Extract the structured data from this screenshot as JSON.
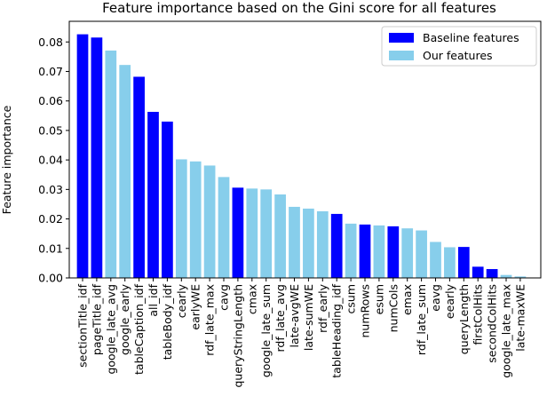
{
  "colors": {
    "baseline": "#0000ff",
    "ours": "#87ceeb",
    "axis": "#000000",
    "legend_border": "#cccccc"
  },
  "legend": {
    "position": "top-right",
    "entries": [
      {
        "label": "Baseline features",
        "group": "baseline"
      },
      {
        "label": "Our features",
        "group": "ours"
      }
    ]
  },
  "chart_data": {
    "type": "bar",
    "title": "Feature importance based on the Gini score for all features",
    "xlabel": "",
    "ylabel": "Feature importance",
    "ylim": [
      0,
      0.087
    ],
    "yticks": [
      "0.00",
      "0.01",
      "0.02",
      "0.03",
      "0.04",
      "0.05",
      "0.06",
      "0.07",
      "0.08"
    ],
    "ytick_values": [
      0.0,
      0.01,
      0.02,
      0.03,
      0.04,
      0.05,
      0.06,
      0.07,
      0.08
    ],
    "grid": false,
    "categories": [
      "sectionTitle_idf",
      "pageTitle_idf",
      "google_late_avg",
      "google_early",
      "tableCaption_idf",
      "all_idf",
      "tableBody_idf",
      "cearly",
      "earlyWE",
      "rdf_late_max",
      "cavg",
      "queryStringLength",
      "cmax",
      "google_late_sum",
      "rdf_late_avg",
      "late-avgWE",
      "late-sumWE",
      "rdf_early",
      "tableHeading_idf",
      "csum",
      "numRows",
      "esum",
      "numCols",
      "emax",
      "rdf_late_sum",
      "eavg",
      "eearly",
      "queryLength",
      "firstColHits",
      "secondColHits",
      "google_late_max",
      "late-maxWE"
    ],
    "values": [
      0.0826,
      0.0815,
      0.0771,
      0.0722,
      0.0682,
      0.0563,
      0.053,
      0.0402,
      0.0395,
      0.0381,
      0.0342,
      0.0306,
      0.0303,
      0.03,
      0.0283,
      0.0241,
      0.0235,
      0.0226,
      0.0217,
      0.0184,
      0.0181,
      0.0178,
      0.0175,
      0.0168,
      0.0161,
      0.0122,
      0.0104,
      0.0105,
      0.0038,
      0.003,
      0.001,
      0.0005
    ],
    "groups": [
      "baseline",
      "baseline",
      "ours",
      "ours",
      "baseline",
      "baseline",
      "baseline",
      "ours",
      "ours",
      "ours",
      "ours",
      "baseline",
      "ours",
      "ours",
      "ours",
      "ours",
      "ours",
      "ours",
      "baseline",
      "ours",
      "baseline",
      "ours",
      "baseline",
      "ours",
      "ours",
      "ours",
      "ours",
      "baseline",
      "baseline",
      "baseline",
      "ours",
      "ours"
    ]
  }
}
